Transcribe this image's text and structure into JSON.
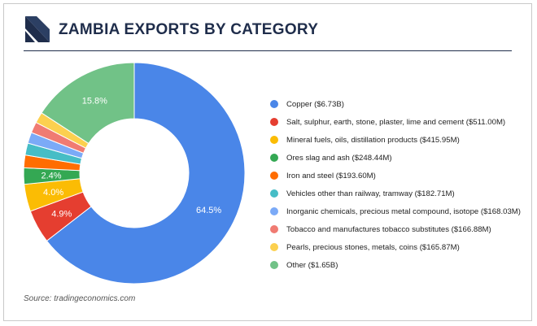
{
  "header": {
    "title": "ZAMBIA EXPORTS BY CATEGORY"
  },
  "footer": {
    "source": "Source: tradingeconomics.com"
  },
  "chart_data": {
    "type": "pie",
    "variant": "donut",
    "title": "ZAMBIA EXPORTS BY CATEGORY",
    "legend_position": "right",
    "categories": [
      "Copper ($6.73B)",
      "Salt, sulphur, earth, stone, plaster, lime and cement ($511.00M)",
      "Mineral fuels, oils, distillation products ($415.95M)",
      "Ores slag and ash ($248.44M)",
      "Iron and steel ($193.60M)",
      "Vehicles other than railway, tramway ($182.71M)",
      "Inorganic chemicals, precious metal compound, isotope ($168.03M)",
      "Tobacco and manufactures tobacco substitutes ($166.88M)",
      "Pearls, precious stones, metals, coins ($165.87M)",
      "Other ($1.65B)"
    ],
    "values": [
      6730,
      511.0,
      415.95,
      248.44,
      193.6,
      182.71,
      168.03,
      166.88,
      165.87,
      1650
    ],
    "value_unit": "$M",
    "slice_labels": [
      "64.5%",
      "4.9%",
      "4.0%",
      "2.4%",
      "",
      "",
      "",
      "",
      "",
      "15.8%"
    ],
    "colors": [
      "#4a86e8",
      "#e53e30",
      "#fbbc04",
      "#34a853",
      "#ff6d01",
      "#46bdc6",
      "#7baaf7",
      "#f07b72",
      "#fcd04f",
      "#71c287"
    ]
  }
}
